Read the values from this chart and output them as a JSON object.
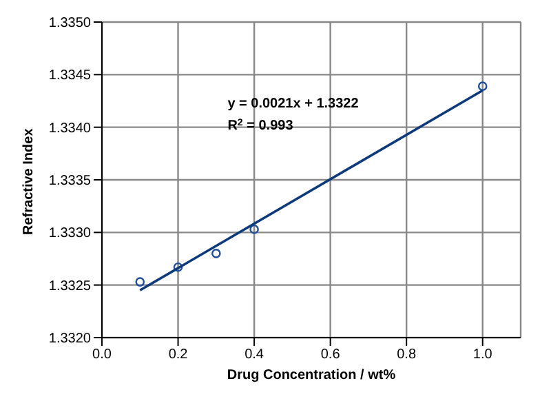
{
  "chart_data": {
    "type": "scatter",
    "xlabel": "Drug Concentration / wt%",
    "ylabel": "Refractive Index",
    "series": [
      {
        "color": "#1f4e9c",
        "x": [
          0.1,
          0.2,
          0.3,
          0.4,
          1.0
        ],
        "values": [
          1.33253,
          1.33267,
          1.3328,
          1.33303,
          1.33439
        ],
        "marker": "circle"
      },
      {
        "type": "line",
        "color": "#0d3a7a",
        "x": [
          0.1,
          1.0
        ],
        "values": [
          1.33245,
          1.33435
        ],
        "marker": "none",
        "line_style": "solid"
      }
    ],
    "xlim": [
      0,
      1.1
    ],
    "xticks": [
      {
        "value": 0,
        "label": "0.0"
      },
      {
        "value": 0.2,
        "label": "0.2"
      },
      {
        "value": 0.4,
        "label": "0.4"
      },
      {
        "value": 0.6,
        "label": "0.6"
      },
      {
        "value": 0.8,
        "label": "0.8"
      },
      {
        "value": 1,
        "label": "1.0"
      }
    ],
    "ylim": [
      1.332,
      1.335
    ],
    "yticks": [
      {
        "value": 1.332,
        "label": "1.3320"
      },
      {
        "value": 1.3325,
        "label": "1.3325"
      },
      {
        "value": 1.333,
        "label": "1.3330"
      },
      {
        "value": 1.3335,
        "label": "1.3335"
      },
      {
        "value": 1.334,
        "label": "1.3340"
      },
      {
        "value": 1.3345,
        "label": "1.3345"
      },
      {
        "value": 1.335,
        "label": "1.3350"
      }
    ],
    "grid": true,
    "annotations": [
      "y = 0.0021x + 1.3322",
      "R$^{2}$ = 0.993"
    ]
  }
}
